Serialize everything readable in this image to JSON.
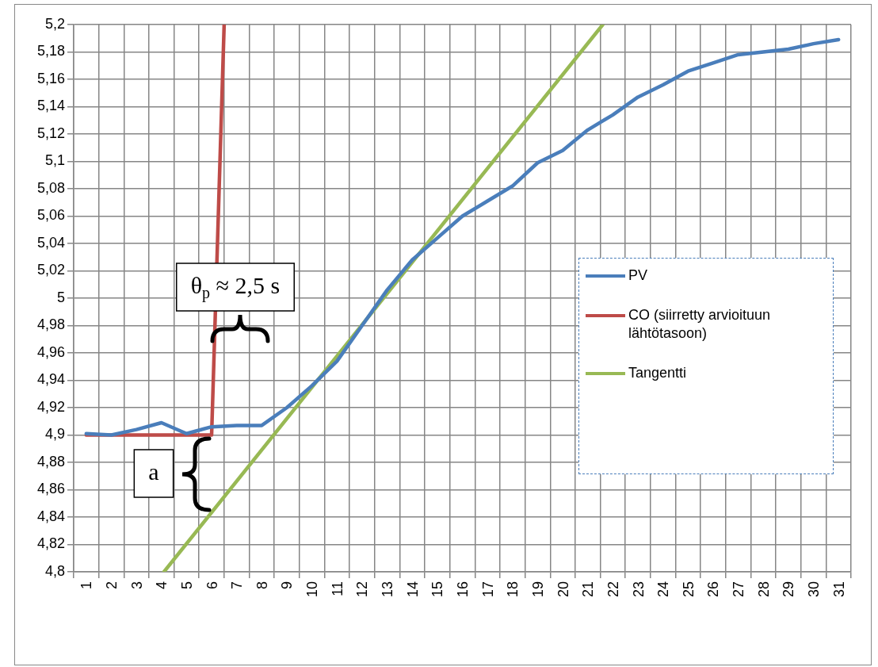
{
  "chart_data": {
    "type": "line",
    "x": [
      1,
      2,
      3,
      4,
      5,
      6,
      7,
      8,
      9,
      10,
      11,
      12,
      13,
      14,
      15,
      16,
      17,
      18,
      19,
      20,
      21,
      22,
      23,
      24,
      25,
      26,
      27,
      28,
      29,
      30,
      31
    ],
    "xlim": [
      0.5,
      31.5
    ],
    "xticks": [
      {
        "value": 0.5,
        "label": null
      },
      1,
      {
        "value": 1.5,
        "label": null
      },
      2,
      {
        "value": 2.5,
        "label": null
      },
      3,
      {
        "value": 3.5,
        "label": null
      },
      4,
      {
        "value": 4.5,
        "label": null
      },
      5,
      {
        "value": 5.5,
        "label": null
      },
      6,
      {
        "value": 6.5,
        "label": null
      },
      7,
      {
        "value": 7.5,
        "label": null
      },
      8,
      {
        "value": 8.5,
        "label": null
      },
      9,
      {
        "value": 9.5,
        "label": null
      },
      10,
      {
        "value": 10.5,
        "label": null
      },
      11,
      {
        "value": 11.5,
        "label": null
      },
      12,
      {
        "value": 12.5,
        "label": null
      },
      13,
      {
        "value": 13.5,
        "label": null
      },
      14,
      {
        "value": 14.5,
        "label": null
      },
      15,
      {
        "value": 15.5,
        "label": null
      },
      16,
      {
        "value": 16.5,
        "label": null
      },
      17,
      {
        "value": 17.5,
        "label": null
      },
      18,
      {
        "value": 18.5,
        "label": null
      },
      19,
      {
        "value": 19.5,
        "label": null
      },
      20,
      {
        "value": 20.5,
        "label": null
      },
      21,
      {
        "value": 21.5,
        "label": null
      },
      22,
      {
        "value": 22.5,
        "label": null
      },
      23,
      {
        "value": 23.5,
        "label": null
      },
      24,
      {
        "value": 24.5,
        "label": null
      },
      25,
      {
        "value": 25.5,
        "label": null
      },
      26,
      {
        "value": 26.5,
        "label": null
      },
      27,
      {
        "value": 27.5,
        "label": null
      },
      28,
      {
        "value": 28.5,
        "label": null
      },
      29,
      {
        "value": 29.5,
        "label": null
      },
      30,
      {
        "value": 30.5,
        "label": null
      },
      31,
      {
        "value": 31.5,
        "label": null
      }
    ],
    "ylim": [
      4.8,
      5.2
    ],
    "yticks": [
      {
        "value": 4.8,
        "label": "4,8"
      },
      {
        "value": 4.82,
        "label": "4,82"
      },
      {
        "value": 4.84,
        "label": "4,84"
      },
      {
        "value": 4.86,
        "label": "4,86"
      },
      {
        "value": 4.88,
        "label": "4,88"
      },
      {
        "value": 4.9,
        "label": "4,9"
      },
      {
        "value": 4.92,
        "label": "4,92"
      },
      {
        "value": 4.94,
        "label": "4,94"
      },
      {
        "value": 4.96,
        "label": "4,96"
      },
      {
        "value": 4.98,
        "label": "4,98"
      },
      {
        "value": 5,
        "label": "5"
      },
      {
        "value": 5.02,
        "label": "5,02"
      },
      {
        "value": 5.04,
        "label": "5,04"
      },
      {
        "value": 5.06,
        "label": "5,06"
      },
      {
        "value": 5.08,
        "label": "5,08"
      },
      {
        "value": 5.1,
        "label": "5,1"
      },
      {
        "value": 5.12,
        "label": "5,12"
      },
      {
        "value": 5.14,
        "label": "5,14"
      },
      {
        "value": 5.16,
        "label": "5,16"
      },
      {
        "value": 5.18,
        "label": "5,18"
      },
      {
        "value": 5.2,
        "label": "5,2"
      }
    ],
    "grid": true,
    "legend": "right",
    "marker": "none",
    "line_style": "solid",
    "series": [
      {
        "name": "PV",
        "color": "#4a7ebb",
        "values": [
          4.901,
          4.9,
          4.904,
          4.909,
          4.901,
          4.906,
          4.907,
          4.907,
          4.92,
          4.936,
          4.954,
          4.98,
          5.006,
          5.028,
          5.044,
          5.06,
          5.071,
          5.082,
          5.099,
          5.108,
          5.123,
          5.134,
          5.147,
          5.156,
          5.166,
          5.172,
          5.178,
          5.18,
          5.182,
          5.186,
          5.189
        ]
      },
      {
        "name": "CO (siirretty arvioituun lähtötasoon)",
        "color": "#be4b48",
        "x": [
          1,
          2,
          3,
          4,
          5,
          6,
          6.5
        ],
        "values": [
          4.9,
          4.9,
          4.9,
          4.9,
          4.9,
          4.9,
          5.2
        ]
      },
      {
        "name": "Tangentti",
        "color": "#98b954",
        "x": [
          4.1,
          21.6
        ],
        "values": [
          4.8,
          5.2
        ]
      }
    ],
    "annotations": [
      "θ$_{p}$ ≈ 2,5 s",
      "a"
    ]
  }
}
